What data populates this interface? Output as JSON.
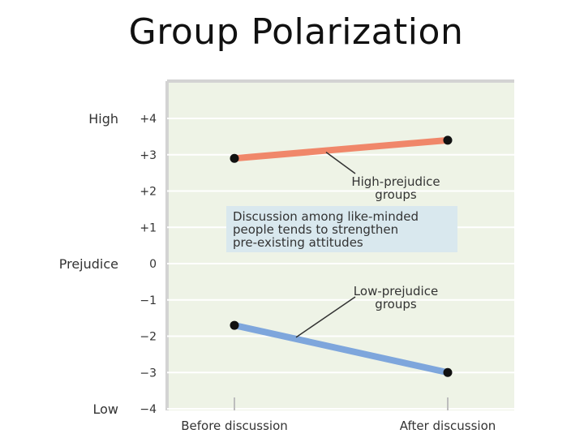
{
  "slide": {
    "title": "Group Polarization"
  },
  "chart_data": {
    "type": "line",
    "title": "",
    "xlabel": "",
    "ylabel": "Prejudice",
    "y_high_label": "High",
    "y_low_label": "Low",
    "categories": [
      "Before discussion",
      "After discussion"
    ],
    "ylim": [
      -4,
      4
    ],
    "yticks": [
      "+4",
      "+3",
      "+2",
      "+1",
      "0",
      "−1",
      "−2",
      "−3",
      "−4"
    ],
    "grid": true,
    "series": [
      {
        "name": "High-prejudice groups",
        "values": [
          2.9,
          3.4
        ],
        "color": "#f0876a"
      },
      {
        "name": "Low-prejudice groups",
        "values": [
          -1.7,
          -3.0
        ],
        "color": "#7ea6dc"
      }
    ],
    "annotations": {
      "high_label_lines": [
        "High-prejudice",
        "groups"
      ],
      "low_label_lines": [
        "Low-prejudice",
        "groups"
      ],
      "box_lines": [
        "Discussion among like-minded",
        "people tends to strengthen",
        "pre-existing attitudes"
      ]
    },
    "colors": {
      "plot_background": "#eef3e6",
      "box_background": "#d9e8ee",
      "gridline": "#ffffff"
    }
  }
}
